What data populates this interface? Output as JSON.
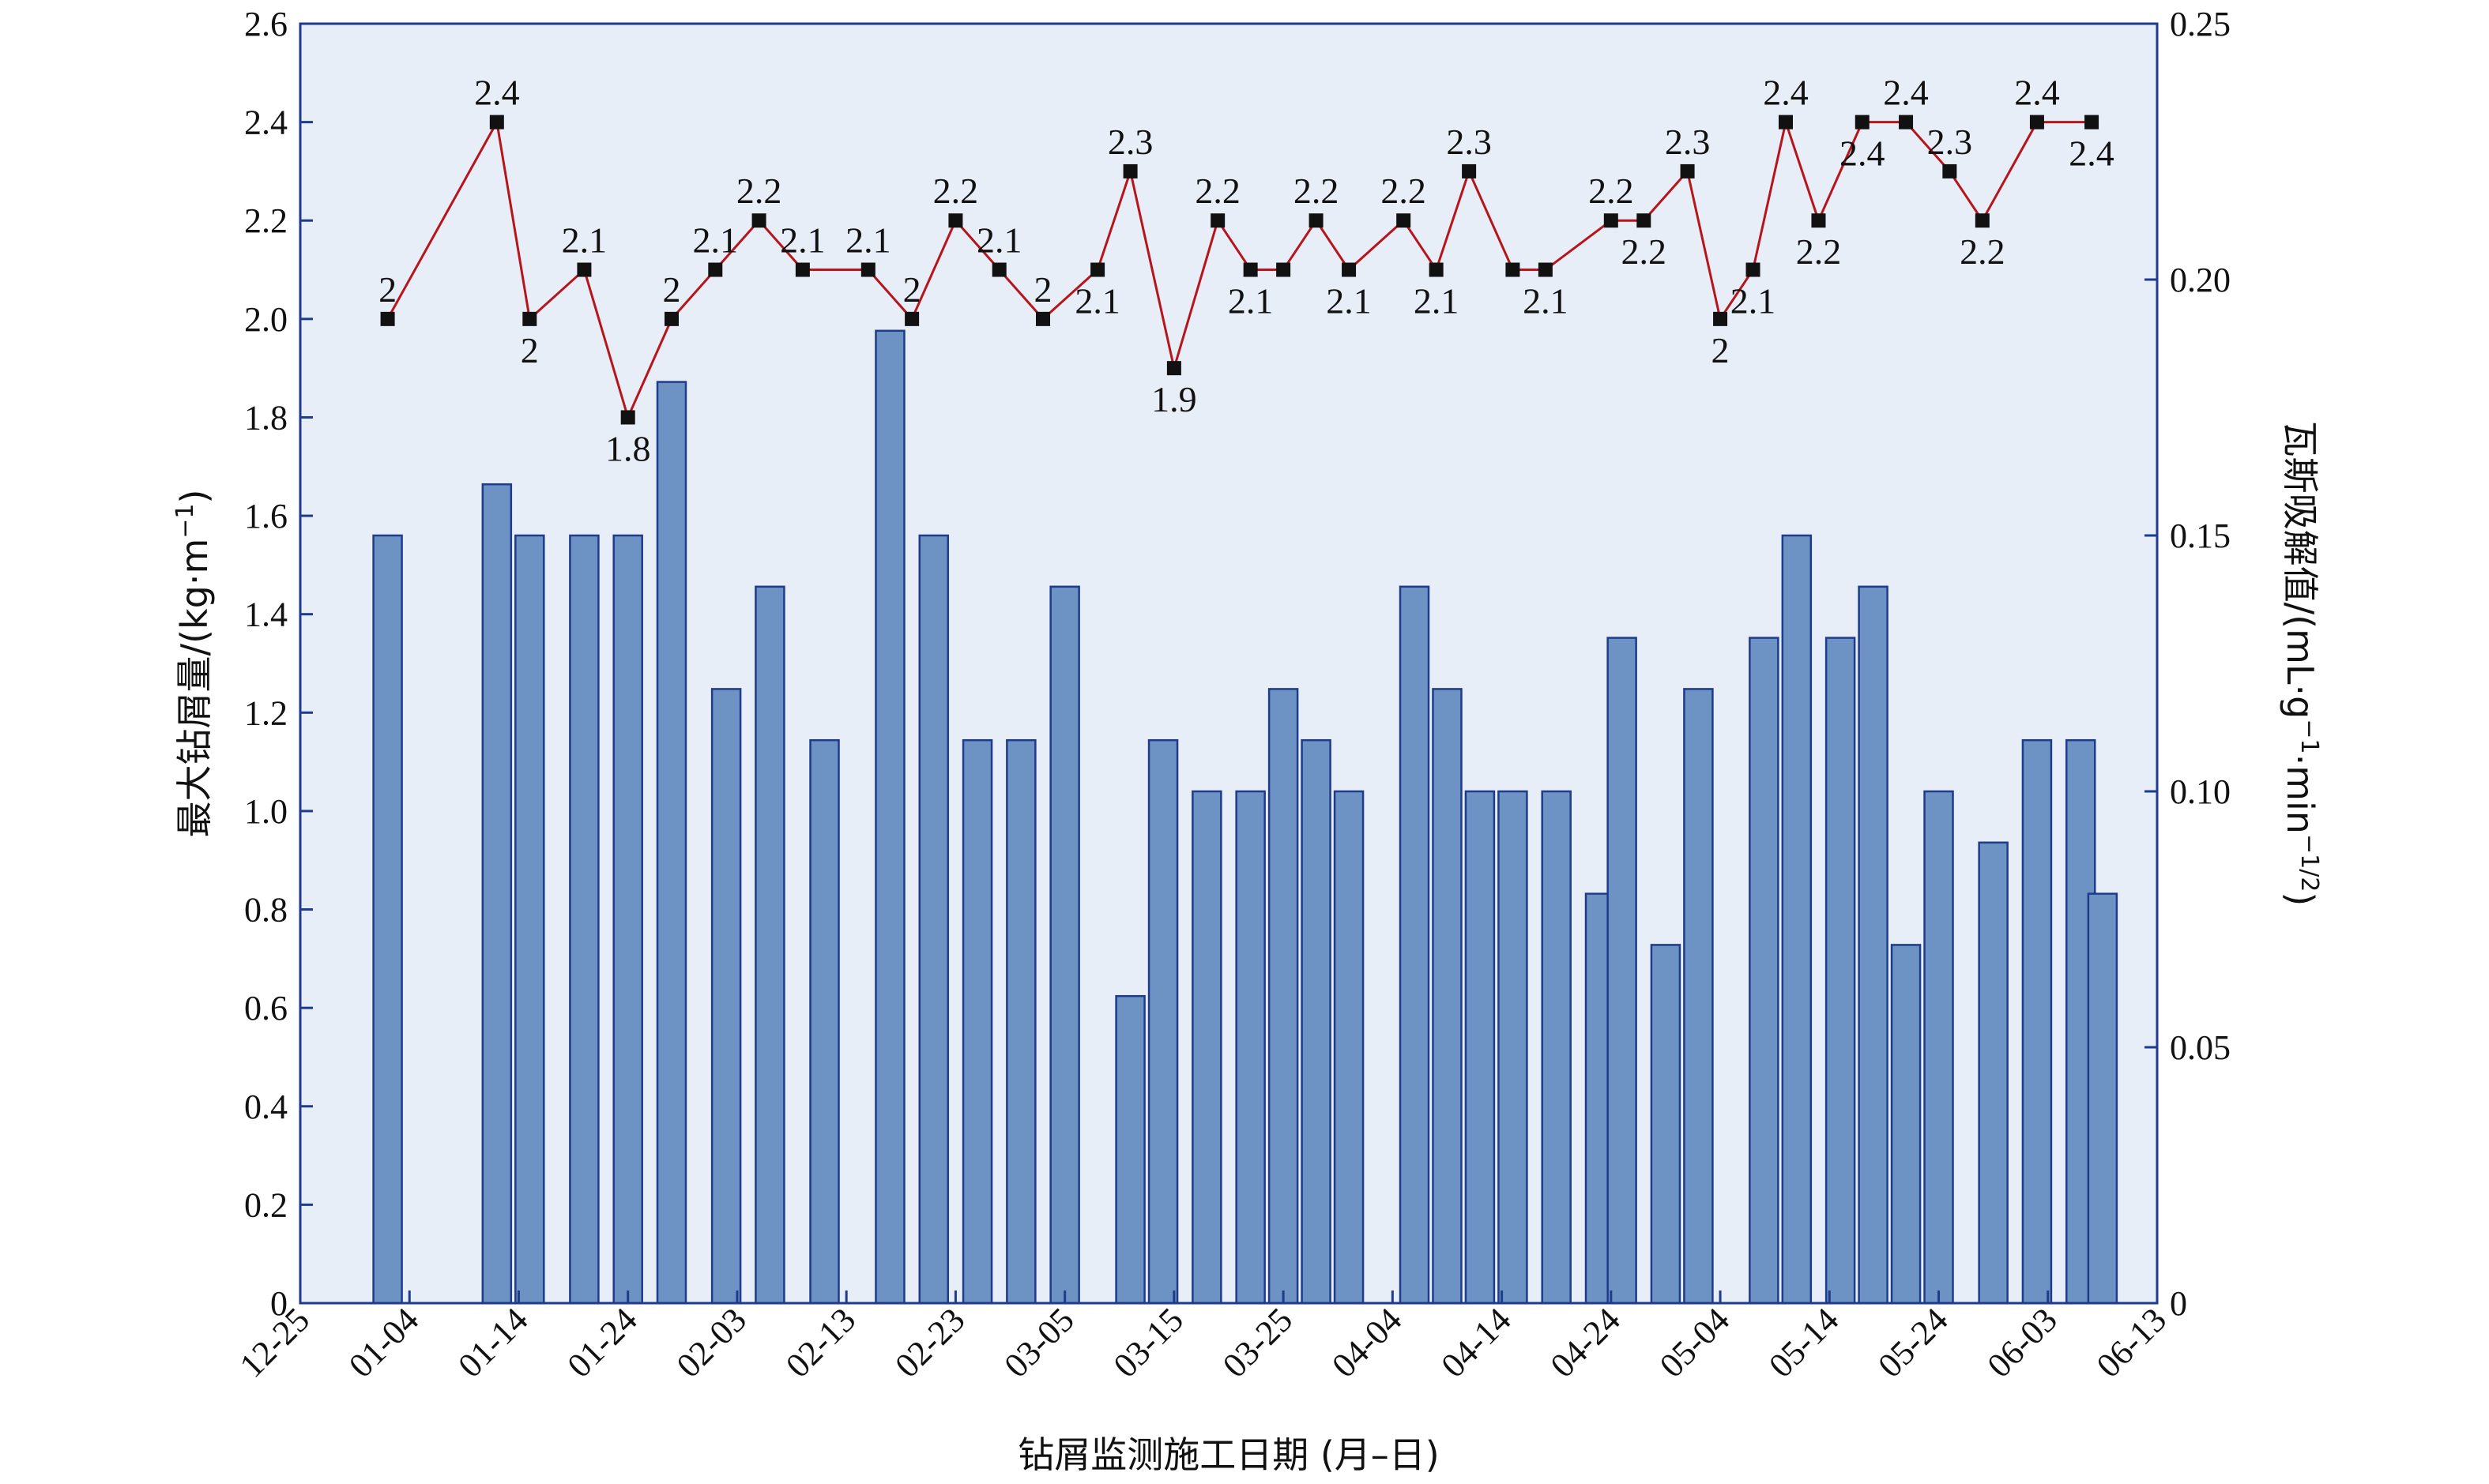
{
  "chart_data": {
    "type": "bar+line",
    "xlabel": "钻屑监测施工日期 (月–日)",
    "ylabel_left": "最大钻屑量/(kg·m",
    "ylabel_left_sup": "−1",
    "ylabel_left_end": ")",
    "ylabel_right": "瓦斯吸解值/(mL·g",
    "ylabel_right_sup1": "−1",
    "ylabel_right_mid": "·min",
    "ylabel_right_sup2": "−1/2",
    "ylabel_right_end": ")",
    "x_ticks": [
      "12-25",
      "01-04",
      "01-14",
      "01-24",
      "02-03",
      "02-13",
      "02-23",
      "03-05",
      "03-15",
      "03-25",
      "04-04",
      "04-14",
      "04-24",
      "05-04",
      "05-14",
      "05-24",
      "06-03",
      "06-13"
    ],
    "x_range_days": [
      0,
      170
    ],
    "left_axis": {
      "range": [
        0,
        2.6
      ],
      "ticks": [
        "0",
        "0.2",
        "0.4",
        "0.6",
        "0.8",
        "1.0",
        "1.2",
        "1.4",
        "1.6",
        "1.8",
        "2.0",
        "2.2",
        "2.4",
        "2.6"
      ]
    },
    "right_axis": {
      "range": [
        0,
        0.25
      ],
      "ticks": [
        "0",
        "0.05",
        "0.10",
        "0.15",
        "0.20",
        "0.25"
      ]
    },
    "colors": {
      "plot_bg": "#e8eef8",
      "bar_fill": "#6d93c4",
      "bar_stroke": "#1f3b8c",
      "line": "#b5151b",
      "marker": "#111111",
      "axis": "#1f3b8c"
    },
    "bars_gas_desorption": {
      "day": [
        8,
        18,
        21,
        26,
        30,
        34,
        39,
        43,
        48,
        54,
        58,
        62,
        66,
        70,
        76,
        79,
        83,
        87,
        90,
        93,
        96,
        102,
        105,
        108,
        111,
        115,
        119,
        121,
        125,
        128,
        134,
        137,
        141,
        144,
        147,
        150,
        155,
        159,
        163,
        165,
        170,
        175
      ],
      "value": [
        0.15,
        0.16,
        0.15,
        0.15,
        0.15,
        0.18,
        0.12,
        0.14,
        0.11,
        0.19,
        0.15,
        0.11,
        0.11,
        0.14,
        0.06,
        0.11,
        0.1,
        0.1,
        0.12,
        0.11,
        0.1,
        0.14,
        0.12,
        0.1,
        0.1,
        0.1,
        0.08,
        0.13,
        0.07,
        0.12,
        0.13,
        0.15,
        0.13,
        0.14,
        0.07,
        0.1,
        0.09,
        0.11,
        0.11,
        0.08,
        0,
        0
      ]
    },
    "line_max_cuttings": {
      "points": [
        {
          "day": 8,
          "value": 2.0,
          "label": "2",
          "pos": "above"
        },
        {
          "day": 18,
          "value": 2.4,
          "label": "2.4",
          "pos": "above"
        },
        {
          "day": 21,
          "value": 2.0,
          "label": "2",
          "pos": "below"
        },
        {
          "day": 26,
          "value": 2.1,
          "label": "2.1",
          "pos": "above"
        },
        {
          "day": 30,
          "value": 1.8,
          "label": "1.8",
          "pos": "below"
        },
        {
          "day": 34,
          "value": 2.0,
          "label": "2",
          "pos": "above"
        },
        {
          "day": 38,
          "value": 2.1,
          "label": "2.1",
          "pos": "above"
        },
        {
          "day": 42,
          "value": 2.2,
          "label": "2.2",
          "pos": "above"
        },
        {
          "day": 46,
          "value": 2.1,
          "label": "2.1",
          "pos": "above"
        },
        {
          "day": 52,
          "value": 2.1,
          "label": "2.1",
          "pos": "above"
        },
        {
          "day": 56,
          "value": 2.0,
          "label": "2",
          "pos": "above"
        },
        {
          "day": 60,
          "value": 2.2,
          "label": "2.2",
          "pos": "above"
        },
        {
          "day": 64,
          "value": 2.1,
          "label": "2.1",
          "pos": "above"
        },
        {
          "day": 68,
          "value": 2.0,
          "label": "2",
          "pos": "above"
        },
        {
          "day": 73,
          "value": 2.1,
          "label": "2.1",
          "pos": "below"
        },
        {
          "day": 76,
          "value": 2.3,
          "label": "2.3",
          "pos": "above"
        },
        {
          "day": 80,
          "value": 1.9,
          "label": "1.9",
          "pos": "below"
        },
        {
          "day": 84,
          "value": 2.2,
          "label": "2.2",
          "pos": "above"
        },
        {
          "day": 87,
          "value": 2.1,
          "label": "2.1",
          "pos": "below"
        },
        {
          "day": 90,
          "value": 2.1,
          "label": "",
          "pos": "above"
        },
        {
          "day": 93,
          "value": 2.2,
          "label": "2.2",
          "pos": "above"
        },
        {
          "day": 96,
          "value": 2.1,
          "label": "2.1",
          "pos": "below"
        },
        {
          "day": 101,
          "value": 2.2,
          "label": "2.2",
          "pos": "above"
        },
        {
          "day": 104,
          "value": 2.1,
          "label": "2.1",
          "pos": "below"
        },
        {
          "day": 107,
          "value": 2.3,
          "label": "2.3",
          "pos": "above"
        },
        {
          "day": 111,
          "value": 2.1,
          "label": "",
          "pos": "above"
        },
        {
          "day": 114,
          "value": 2.1,
          "label": "2.1",
          "pos": "below"
        },
        {
          "day": 120,
          "value": 2.2,
          "label": "2.2",
          "pos": "above"
        },
        {
          "day": 123,
          "value": 2.2,
          "label": "2.2",
          "pos": "below"
        },
        {
          "day": 127,
          "value": 2.3,
          "label": "2.3",
          "pos": "above"
        },
        {
          "day": 130,
          "value": 2.0,
          "label": "2",
          "pos": "below"
        },
        {
          "day": 133,
          "value": 2.1,
          "label": "2.1",
          "pos": "below"
        },
        {
          "day": 136,
          "value": 2.4,
          "label": "2.4",
          "pos": "above"
        },
        {
          "day": 139,
          "value": 2.2,
          "label": "2.2",
          "pos": "below"
        },
        {
          "day": 143,
          "value": 2.4,
          "label": "2.4",
          "pos": "below"
        },
        {
          "day": 147,
          "value": 2.4,
          "label": "2.4",
          "pos": "above"
        },
        {
          "day": 151,
          "value": 2.3,
          "label": "2.3",
          "pos": "above"
        },
        {
          "day": 154,
          "value": 2.2,
          "label": "2.2",
          "pos": "below"
        },
        {
          "day": 159,
          "value": 2.4,
          "label": "2.4",
          "pos": "above"
        },
        {
          "day": 164,
          "value": 2.4,
          "label": "2.4",
          "pos": "below"
        }
      ]
    }
  }
}
